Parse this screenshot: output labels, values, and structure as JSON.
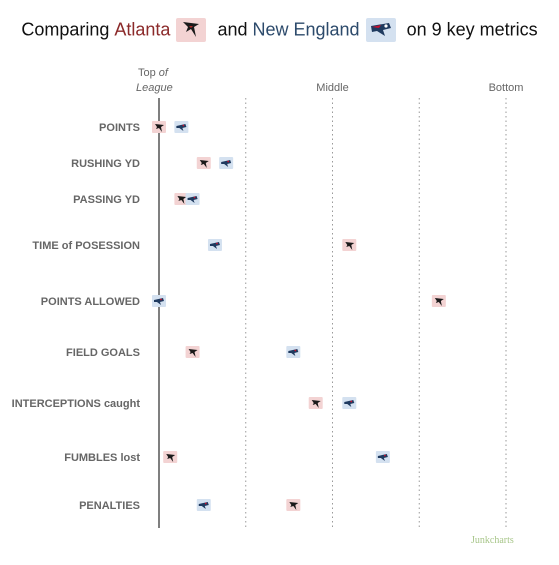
{
  "title": {
    "prefix": "Comparing ",
    "team_a": "Atlanta",
    "mid": " and ",
    "team_b": "New England",
    "suffix": " on 9 key metrics"
  },
  "colors": {
    "atlanta": "#f3d3d3",
    "atlanta_text": "#8b2a2a",
    "new_england": "#d4e1f0",
    "new_england_text": "#2c4a6b"
  },
  "icons": {
    "atlanta": "falcon-logo-icon",
    "new_england": "patriot-logo-icon"
  },
  "credit": "Junkcharts",
  "chart_data": {
    "type": "scatter",
    "x_axis_labels": {
      "top": "Top",
      "top_of": "of",
      "league": "League",
      "middle": "Middle",
      "bottom": "Bottom"
    },
    "xlim": [
      1,
      32
    ],
    "grid": true,
    "rows": [
      "POINTS",
      "RUSHING YD",
      "PASSING YD",
      "TIME of POSESSION",
      "POINTS ALLOWED",
      "FIELD GOALS",
      "INTERCEPTIONS caught",
      "FUMBLES lost",
      "PENALTIES"
    ],
    "series": [
      {
        "name": "Atlanta",
        "values": [
          1,
          5,
          3,
          18,
          26,
          4,
          15,
          2,
          13
        ]
      },
      {
        "name": "New England",
        "values": [
          3,
          7,
          4,
          6,
          1,
          13,
          18,
          21,
          5
        ]
      }
    ]
  }
}
